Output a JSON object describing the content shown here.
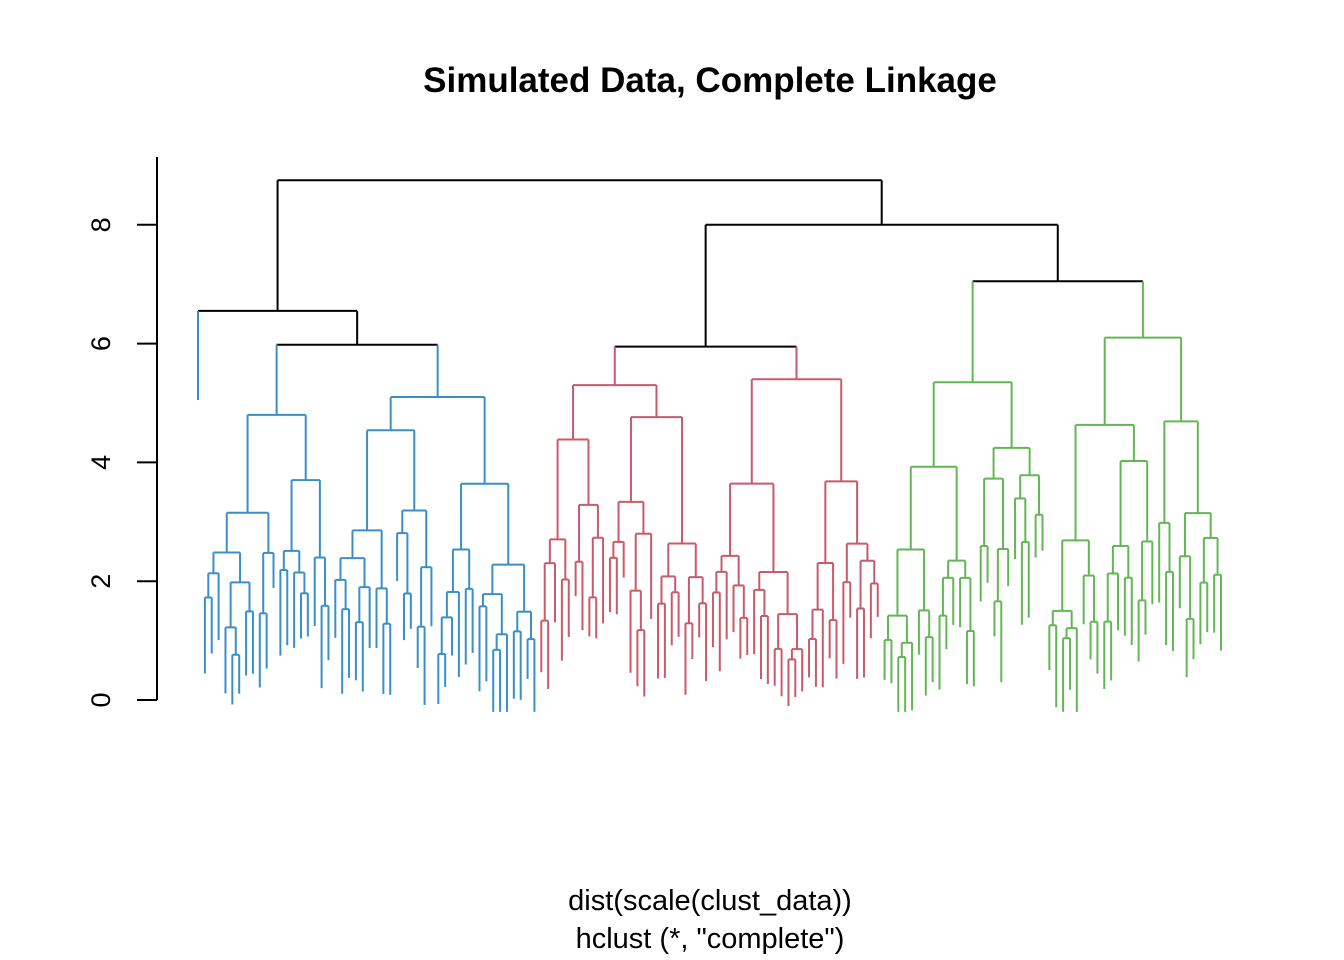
{
  "chart_data": {
    "type": "dendrogram",
    "title": "Simulated Data, Complete Linkage",
    "xlabel": "dist(scale(clust_data))",
    "sublabel": "hclust (*, \"complete\")",
    "ylabel": "",
    "ylim": [
      0,
      9.2
    ],
    "y_ticks": [
      0,
      2,
      4,
      6,
      8
    ],
    "y_tick_labels": [
      "0",
      "2",
      "4",
      "6",
      "8"
    ],
    "n_leaves": 150,
    "clusters": [
      {
        "id": "cluster-1",
        "color": "#3a8fc7",
        "n": 50
      },
      {
        "id": "cluster-2",
        "color": "#c75a6b",
        "n": 50
      },
      {
        "id": "cluster-3",
        "color": "#63b655",
        "n": 50
      }
    ],
    "merges": {
      "root": 8.75,
      "left_group": 6.55,
      "left_subgroup": 5.98,
      "right_group": 8.0,
      "middle_group": 5.95,
      "green_group": 7.05,
      "green_right": 6.47
    }
  }
}
